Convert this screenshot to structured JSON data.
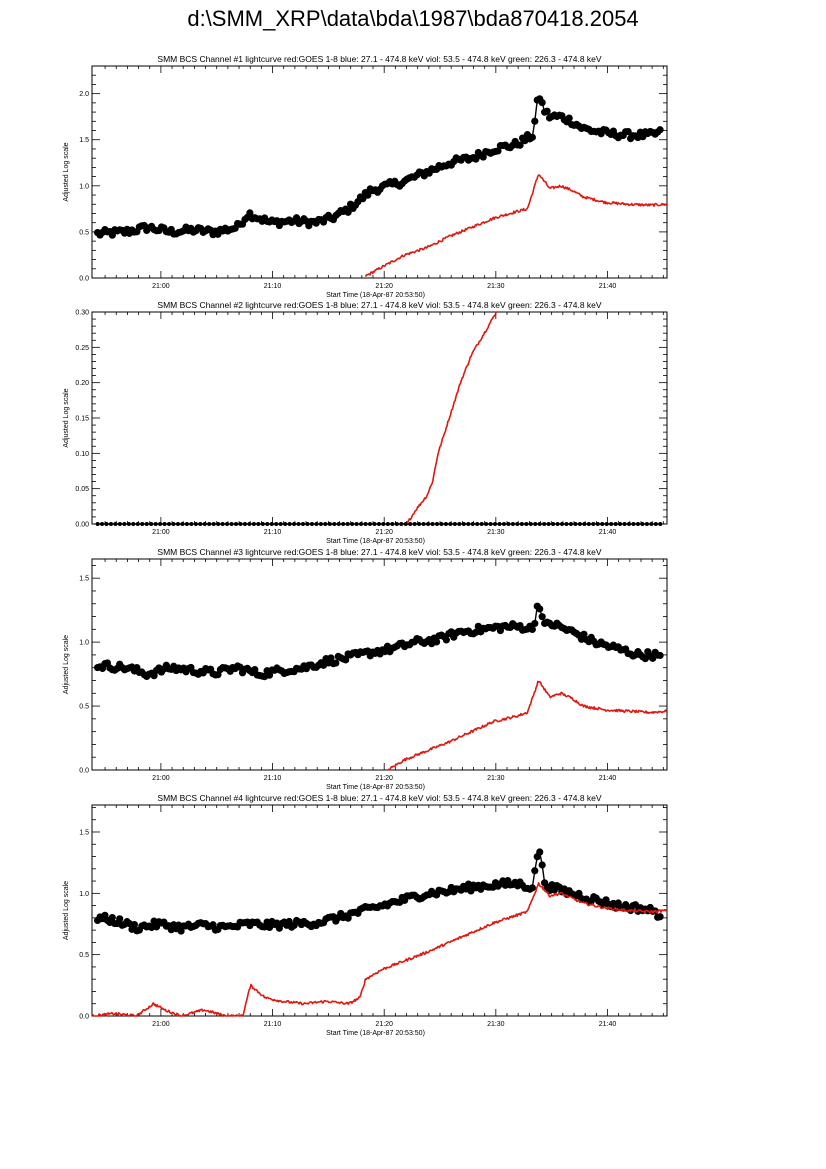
{
  "page_title": "d:\\SMM_XRP\\data\\bda\\1987\\bda870418.2054",
  "colors": {
    "goes": "#e0170f",
    "bcs": "#000000"
  },
  "chart_data": [
    {
      "type": "line",
      "title": "SMM BCS Channel #1 lightcurve  red:GOES 1-8  blue: 27.1 - 474.8 keV  viol: 53.5 - 474.8 keV  green: 226.3 - 474.8 keV",
      "xlabel": "Start Time (18-Apr-87 20:53:50)",
      "ylabel": "Adjusted Log scale",
      "xlim": [
        0,
        51.5
      ],
      "ylim": [
        0,
        2.3
      ],
      "yticks": [
        0,
        0.5,
        1.0,
        1.5,
        2.0
      ],
      "ytick_labels": [
        "0.0",
        "0.5",
        "1.0",
        "1.5",
        "2.0"
      ],
      "xticks": [
        6.17,
        16.17,
        26.17,
        36.17,
        46.17
      ],
      "xtick_labels": [
        "21:00",
        "21:10",
        "21:20",
        "21:30",
        "21:40"
      ],
      "series": [
        {
          "name": "BCS",
          "color": "#000000",
          "marker": "circle",
          "x": [
            0.5,
            3,
            5,
            7,
            9,
            11,
            13,
            14,
            16,
            18,
            20,
            21.5,
            23,
            25,
            26.5,
            28,
            30,
            32,
            34,
            36,
            38,
            39.5,
            40,
            40.5,
            41,
            42,
            43,
            44,
            46,
            48,
            50,
            51
          ],
          "y": [
            0.48,
            0.5,
            0.55,
            0.5,
            0.52,
            0.5,
            0.55,
            0.7,
            0.6,
            0.62,
            0.6,
            0.65,
            0.75,
            0.95,
            1.0,
            1.05,
            1.15,
            1.25,
            1.3,
            1.4,
            1.45,
            1.55,
            2.0,
            1.82,
            1.75,
            1.75,
            1.7,
            1.62,
            1.57,
            1.55,
            1.55,
            1.58
          ]
        },
        {
          "name": "GOES 1-8",
          "color": "#e0170f",
          "marker": "none",
          "x": [
            24.5,
            26,
            28,
            30,
            32,
            34,
            36,
            38,
            39,
            40,
            41,
            42,
            43,
            44,
            46,
            48,
            50,
            51.5
          ],
          "y": [
            0.02,
            0.12,
            0.25,
            0.33,
            0.45,
            0.55,
            0.65,
            0.72,
            0.75,
            1.13,
            0.97,
            1.0,
            0.95,
            0.88,
            0.82,
            0.8,
            0.79,
            0.8
          ]
        }
      ]
    },
    {
      "type": "line",
      "title": "SMM BCS Channel #2 lightcurve  red:GOES 1-8  blue: 27.1 - 474.8 keV  viol: 53.5 - 474.8 keV  green: 226.3 - 474.8 keV",
      "xlabel": "Start Time (18-Apr-87 20:53:50)",
      "ylabel": "Adjusted Log scale",
      "xlim": [
        0,
        51.5
      ],
      "ylim": [
        0,
        0.3
      ],
      "yticks": [
        0,
        0.05,
        0.1,
        0.15,
        0.2,
        0.25,
        0.3
      ],
      "ytick_labels": [
        "0.00",
        "0.05",
        "0.10",
        "0.15",
        "0.20",
        "0.25",
        "0.30"
      ],
      "xticks": [
        6.17,
        16.17,
        26.17,
        36.17,
        46.17
      ],
      "xtick_labels": [
        "21:00",
        "21:10",
        "21:20",
        "21:30",
        "21:40"
      ],
      "series": [
        {
          "name": "BCS",
          "color": "#000000",
          "marker": "circle-small",
          "x": [
            0.5,
            51
          ],
          "y": [
            0.0,
            0.0
          ]
        },
        {
          "name": "GOES 1-8",
          "color": "#e0170f",
          "marker": "none",
          "x": [
            28.2,
            29,
            30,
            30.5,
            31,
            32,
            33,
            34,
            35.5,
            36.2
          ],
          "y": [
            0.0,
            0.02,
            0.04,
            0.06,
            0.1,
            0.15,
            0.2,
            0.24,
            0.28,
            0.3
          ]
        }
      ]
    },
    {
      "type": "line",
      "title": "SMM BCS Channel #3 lightcurve  red:GOES 1-8  blue: 27.1 - 474.8 keV  viol: 53.5 - 474.8 keV  green: 226.3 - 474.8 keV",
      "xlabel": "Start Time (18-Apr-87 20:53:50)",
      "ylabel": "Adjusted Log scale",
      "xlim": [
        0,
        51.5
      ],
      "ylim": [
        0,
        1.65
      ],
      "yticks": [
        0,
        0.5,
        1.0,
        1.5
      ],
      "ytick_labels": [
        "0.0",
        "0.5",
        "1.0",
        "1.5"
      ],
      "xticks": [
        6.17,
        16.17,
        26.17,
        36.17,
        46.17
      ],
      "xtick_labels": [
        "21:00",
        "21:10",
        "21:20",
        "21:30",
        "21:40"
      ],
      "series": [
        {
          "name": "BCS",
          "color": "#000000",
          "marker": "circle",
          "x": [
            0.5,
            3,
            5,
            7,
            9,
            11,
            13,
            15,
            17,
            19,
            21,
            23,
            25,
            27,
            29,
            31,
            33,
            35,
            37,
            38.5,
            39.5,
            40,
            40.5,
            41,
            43,
            45,
            47,
            49,
            50.5,
            51
          ],
          "y": [
            0.82,
            0.8,
            0.75,
            0.8,
            0.78,
            0.76,
            0.8,
            0.75,
            0.78,
            0.8,
            0.85,
            0.88,
            0.92,
            0.95,
            1.0,
            1.02,
            1.08,
            1.1,
            1.12,
            1.12,
            1.1,
            1.33,
            1.12,
            1.15,
            1.08,
            1.0,
            0.95,
            0.9,
            0.9,
            0.87
          ]
        },
        {
          "name": "GOES 1-8",
          "color": "#e0170f",
          "marker": "none",
          "x": [
            26.5,
            28,
            30,
            32,
            34,
            36,
            38,
            39,
            40,
            41,
            42,
            43,
            44,
            46,
            48,
            50,
            51.5
          ],
          "y": [
            0.0,
            0.08,
            0.15,
            0.22,
            0.3,
            0.38,
            0.42,
            0.45,
            0.7,
            0.57,
            0.6,
            0.56,
            0.5,
            0.47,
            0.46,
            0.45,
            0.46
          ]
        }
      ]
    },
    {
      "type": "line",
      "title": "SMM BCS Channel #4 lightcurve  red:GOES 1-8  blue: 27.1 - 474.8 keV  viol: 53.5 - 474.8 keV  green: 226.3 - 474.8 keV",
      "xlabel": "Start Time (18-Apr-87 20:53:50)",
      "ylabel": "Adjusted Log scale",
      "xlim": [
        0,
        51.5
      ],
      "ylim": [
        0,
        1.72
      ],
      "yticks": [
        0,
        0.5,
        1.0,
        1.5
      ],
      "ytick_labels": [
        "0.0",
        "0.5",
        "1.0",
        "1.5"
      ],
      "xticks": [
        6.17,
        16.17,
        26.17,
        36.17,
        46.17
      ],
      "xtick_labels": [
        "21:00",
        "21:10",
        "21:20",
        "21:30",
        "21:40"
      ],
      "series": [
        {
          "name": "BCS",
          "color": "#000000",
          "marker": "circle",
          "x": [
            0.5,
            2,
            4,
            6,
            8,
            10,
            12,
            14,
            16,
            18,
            20,
            22,
            24,
            26,
            28,
            30,
            32,
            34,
            36,
            38,
            39.5,
            40,
            40.5,
            41,
            43,
            45,
            47,
            49,
            50.5,
            51
          ],
          "y": [
            0.8,
            0.78,
            0.72,
            0.75,
            0.72,
            0.74,
            0.72,
            0.75,
            0.74,
            0.75,
            0.76,
            0.8,
            0.85,
            0.9,
            0.95,
            1.0,
            1.02,
            1.05,
            1.07,
            1.08,
            1.05,
            1.4,
            1.1,
            1.05,
            1.0,
            0.95,
            0.9,
            0.88,
            0.85,
            0.8
          ]
        },
        {
          "name": "GOES 1-8",
          "color": "#e0170f",
          "marker": "none",
          "x": [
            0,
            2,
            4,
            5.5,
            6.5,
            8,
            10,
            12,
            13.5,
            14.2,
            15.5,
            17,
            19,
            21,
            23,
            24,
            24.5,
            26,
            28,
            30,
            32,
            34,
            36,
            38,
            39,
            40,
            41,
            42,
            43,
            44,
            46,
            48,
            50,
            51.5
          ],
          "y": [
            0.0,
            0.02,
            0.0,
            0.1,
            0.05,
            0.0,
            0.05,
            0.0,
            0.0,
            0.25,
            0.15,
            0.12,
            0.1,
            0.12,
            0.1,
            0.15,
            0.3,
            0.38,
            0.45,
            0.52,
            0.6,
            0.68,
            0.76,
            0.82,
            0.85,
            1.08,
            0.98,
            1.0,
            0.96,
            0.92,
            0.88,
            0.86,
            0.85,
            0.86
          ]
        }
      ]
    }
  ]
}
